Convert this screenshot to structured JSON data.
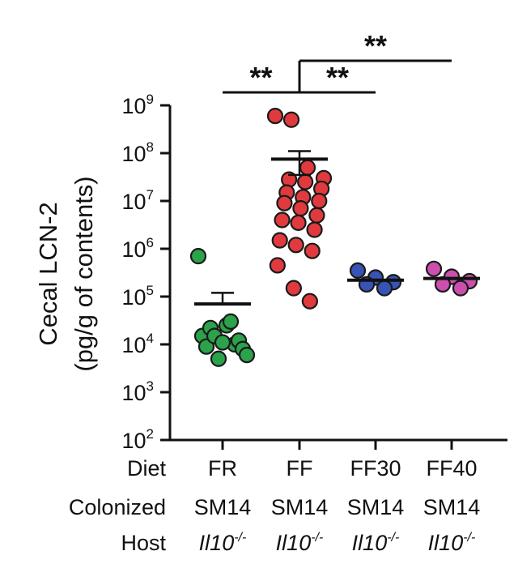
{
  "chart_data": {
    "type": "scatter",
    "yscale": "log",
    "ylim": [
      100,
      1000000000
    ],
    "ylabel_line1": "Cecal LCN-2",
    "ylabel_line2": "(pg/g of contents)",
    "ytick_base": "10",
    "yticks": [
      {
        "exp": "2",
        "value": 100
      },
      {
        "exp": "3",
        "value": 1000
      },
      {
        "exp": "4",
        "value": 10000
      },
      {
        "exp": "5",
        "value": 100000
      },
      {
        "exp": "6",
        "value": 1000000
      },
      {
        "exp": "7",
        "value": 10000000
      },
      {
        "exp": "8",
        "value": 100000000
      },
      {
        "exp": "9",
        "value": 1000000000
      }
    ],
    "row_labels": {
      "diet": "Diet",
      "colonized": "Colonized",
      "host": "Host"
    },
    "groups": [
      {
        "diet": "FR",
        "colonized": "SM14",
        "host": "Il10",
        "host_sup": "-/-",
        "color": "#2ca24a",
        "mean": 70000,
        "sem_upper": 120000,
        "points": [
          700000,
          25000,
          15000,
          30000,
          9000,
          10000,
          22000,
          12000,
          15000,
          8000,
          5000,
          6000,
          11000
        ]
      },
      {
        "diet": "FF",
        "colonized": "SM14",
        "host": "Il10",
        "host_sup": "-/-",
        "color": "#e03a3e",
        "mean": 75000000,
        "sem_upper": 110000000,
        "sem_lower": 35000000,
        "points": [
          600000000,
          500000000,
          50000000,
          30000000,
          28000000,
          25000000,
          18000000,
          15000000,
          12000000,
          10000000,
          9000000,
          7000000,
          5000000,
          4000000,
          3500000,
          2500000,
          1500000,
          1200000,
          900000,
          450000,
          150000,
          80000
        ]
      },
      {
        "diet": "FF30",
        "colonized": "SM14",
        "host": "Il10",
        "host_sup": "-/-",
        "color": "#3753b5",
        "mean": 220000,
        "points": [
          350000,
          250000,
          200000,
          180000,
          150000
        ]
      },
      {
        "diet": "FF40",
        "colonized": "SM14",
        "host": "Il10",
        "host_sup": "-/-",
        "color": "#cc4fae",
        "mean": 240000,
        "points": [
          380000,
          260000,
          210000,
          180000,
          150000
        ]
      }
    ],
    "significance": [
      {
        "label": "**",
        "from": "FR",
        "to": "FF"
      },
      {
        "label": "**",
        "from": "FF",
        "to": "FF30"
      },
      {
        "label": "**",
        "from": "FF",
        "to": "FF40"
      }
    ]
  }
}
